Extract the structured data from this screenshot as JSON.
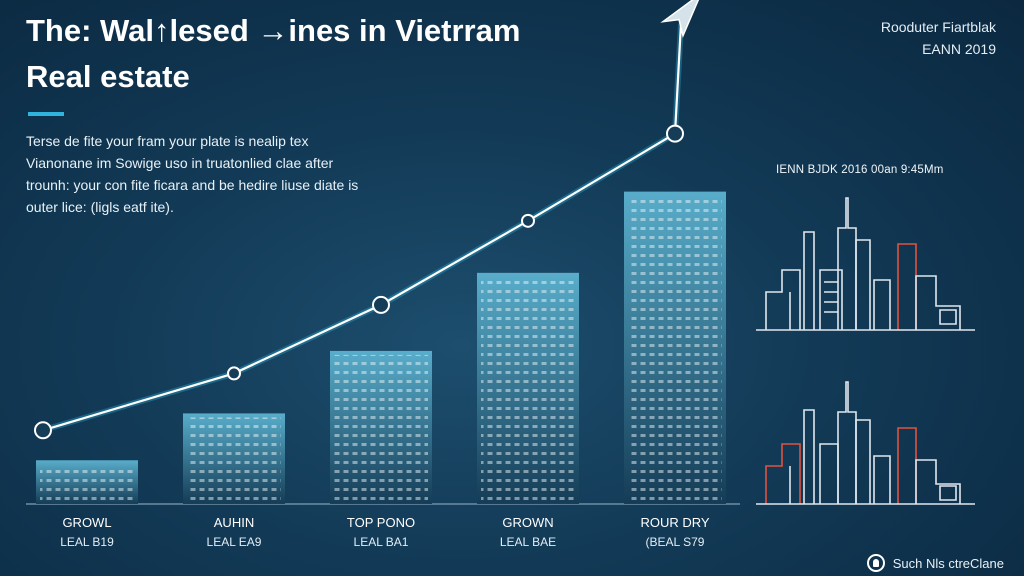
{
  "header": {
    "title_line1": "The: Wal↑lesed →ines in Vietrram",
    "title_line2": "Real estate",
    "source_line1": "Rooduter Fiartblak",
    "source_line2": "EANN 2019"
  },
  "description": "Terse de fite your fram your plate is nealip tex Vianonane im Sowige uso in truatonlied clae after trounh: your con fite ficara and be hedire liuse diate is outer lice: (ligls eatf ite).",
  "side_caption": "IENN BJDK 2016 00an 9:45Mm",
  "footer": {
    "label": "Such Nls ctreClane",
    "icon": "location-pin-icon"
  },
  "colors": {
    "accent": "#2fb5dd",
    "bar_top": "#4fa7c6",
    "bar_bottom": "#163d57",
    "trend_line": "#ffffff",
    "skyline_stroke": "#dfe7ee",
    "skyline_highlight": "#e0523f"
  },
  "chart_data": {
    "type": "bar",
    "categories": [
      "GROWL",
      "AUHIN",
      "TOP PONO",
      "GROWN",
      "ROUR DRY"
    ],
    "sublabels": [
      "LEAL B19",
      "LEAL EA9",
      "LEAL BA1",
      "LEAL BAE",
      "(BEAL S79"
    ],
    "values": [
      14,
      29,
      49,
      74,
      100
    ],
    "ylim": [
      0,
      105
    ],
    "trend": {
      "type": "line",
      "direction": "rising",
      "arrowhead": true
    },
    "grid": false,
    "legend": "none"
  }
}
